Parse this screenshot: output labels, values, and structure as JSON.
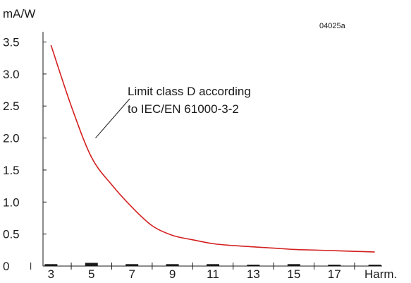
{
  "chart_data": {
    "type": "line",
    "title": "",
    "figure_id": "04025a",
    "ylabel": "mA/W",
    "xlabel": "Harm.",
    "ylim": [
      0,
      3.5
    ],
    "y_ticks": [
      "0",
      "0.5",
      "1.0",
      "1.5",
      "2.0",
      "2.5",
      "3.0",
      "3.5"
    ],
    "y_tick_values": [
      0,
      0.5,
      1.0,
      1.5,
      2.0,
      2.5,
      3.0,
      3.5
    ],
    "x_ticks": [
      "3",
      "5",
      "7",
      "9",
      "11",
      "13",
      "15",
      "17"
    ],
    "x_tick_values": [
      3,
      5,
      7,
      9,
      11,
      13,
      15,
      17
    ],
    "xlim": [
      2.5,
      19.5
    ],
    "series": [
      {
        "name": "",
        "color": "#d42020",
        "x": [
          3,
          4,
          5,
          6,
          7,
          8,
          9,
          10,
          11,
          12,
          13,
          14,
          15,
          16,
          17,
          18,
          19
        ],
        "y": [
          3.45,
          2.5,
          1.7,
          1.27,
          0.92,
          0.63,
          0.48,
          0.41,
          0.35,
          0.32,
          0.3,
          0.28,
          0.26,
          0.25,
          0.24,
          0.23,
          0.22
        ]
      }
    ],
    "annotation": {
      "line1": "Limit class D according",
      "line2": "to IEC/EN 61000-3-2",
      "target_x": 5.2,
      "target_y": 2.0
    },
    "measured_bars": [
      {
        "harmonic": 3,
        "value": 0.03
      },
      {
        "harmonic": 5,
        "value": 0.05
      },
      {
        "harmonic": 7,
        "value": 0.03
      },
      {
        "harmonic": 9,
        "value": 0.03
      },
      {
        "harmonic": 11,
        "value": 0.03
      },
      {
        "harmonic": 13,
        "value": 0.02
      },
      {
        "harmonic": 15,
        "value": 0.03
      },
      {
        "harmonic": 17,
        "value": 0.02
      },
      {
        "harmonic": 19,
        "value": 0.02
      }
    ]
  }
}
